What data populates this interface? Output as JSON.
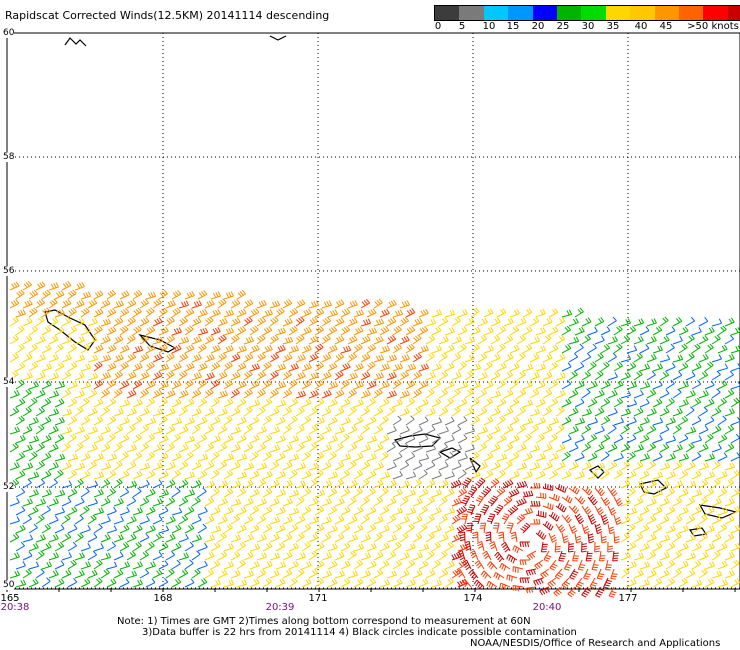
{
  "title": "Rapidscat Corrected Winds(12.5KM) 20141114 descending",
  "colorbar": {
    "colors": [
      "#3c3c3c",
      "#7a7a7a",
      "#00c8ff",
      "#0096ff",
      "#0000ff",
      "#00b400",
      "#00dc00",
      "#ffd700",
      "#ffc800",
      "#ff9600",
      "#ff6400",
      "#ff0000",
      "#c80000",
      "#8b4513",
      "#5a2a0a",
      "#ff00ff",
      "#b400b4",
      "#6400b4"
    ],
    "labels": [
      "0",
      "5",
      "10",
      "15",
      "20",
      "25",
      "30",
      "35",
      "40",
      "45",
      ">50 knots"
    ]
  },
  "latitudes": [
    "60",
    "58",
    "56",
    "54",
    "52",
    "50"
  ],
  "longitudes": [
    "165",
    "168",
    "171",
    "174",
    "177"
  ],
  "times": [
    "20:38",
    "20:39",
    "20:40"
  ],
  "notes": [
    "Note: 1) Times are GMT 2)Times along bottom correspond to measurement at 60N",
    "3)Data buffer is 22 hrs from 20141114 4) Black circles indicate possible contamination",
    "NOAA/NESDIS/Office of Research and Applications"
  ]
}
